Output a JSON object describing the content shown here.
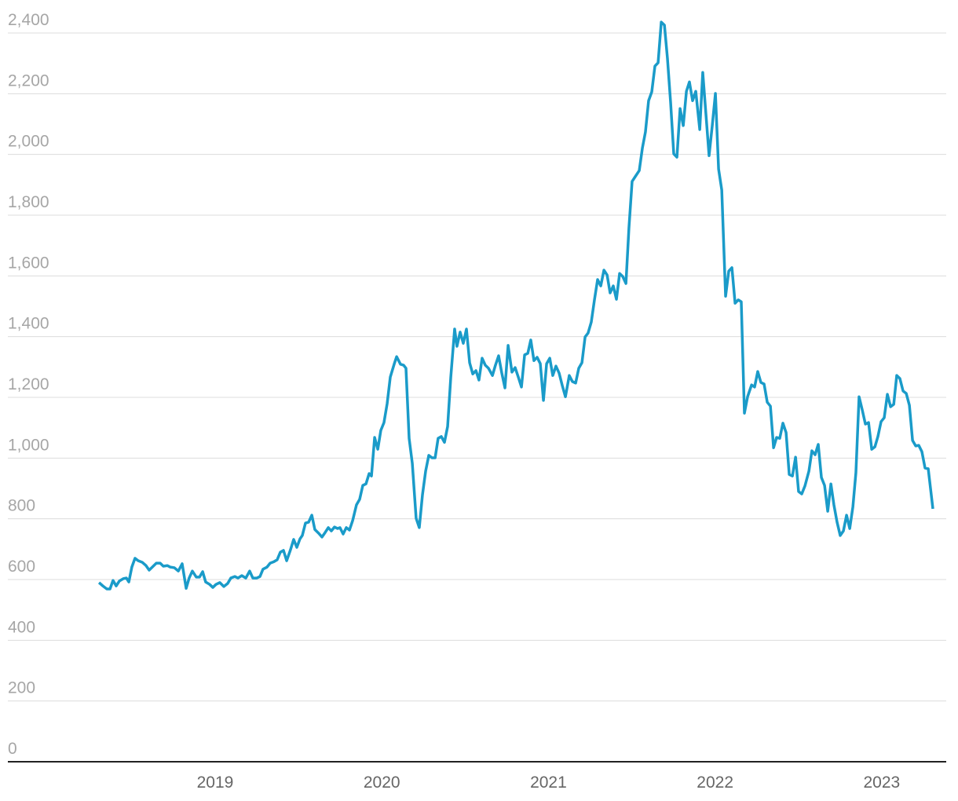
{
  "chart_data": {
    "type": "line",
    "color": "#1a9bc9",
    "grid": true,
    "xlim": [
      2017.756,
      2023.387
    ],
    "xticks": [
      2019,
      2020,
      2021,
      2022,
      2023
    ],
    "ylim": [
      0,
      2400
    ],
    "yticks": [
      0,
      200,
      400,
      600,
      800,
      {
        "value": 1000,
        "label": "1,000"
      },
      {
        "value": 1200,
        "label": "1,200"
      },
      {
        "value": 1400,
        "label": "1,400"
      },
      {
        "value": 1600,
        "label": "1,600"
      },
      {
        "value": 1800,
        "label": "1,800"
      },
      {
        "value": 2000,
        "label": "2,000"
      },
      {
        "value": 2200,
        "label": "2,200"
      },
      {
        "value": 2400,
        "label": "2,400"
      }
    ],
    "x": [
      2018.303,
      2018.326,
      2018.35,
      2018.369,
      2018.387,
      2018.406,
      2018.425,
      2018.449,
      2018.467,
      2018.482,
      2018.5,
      2018.519,
      2018.538,
      2018.562,
      2018.585,
      2018.604,
      2018.623,
      2018.647,
      2018.67,
      2018.689,
      2018.713,
      2018.731,
      2018.755,
      2018.779,
      2018.802,
      2018.826,
      2018.844,
      2018.863,
      2018.887,
      2018.906,
      2018.925,
      2018.943,
      2018.967,
      2018.986,
      2019.005,
      2019.028,
      2019.052,
      2019.075,
      2019.094,
      2019.118,
      2019.137,
      2019.16,
      2019.184,
      2019.207,
      2019.226,
      2019.25,
      2019.269,
      2019.287,
      2019.311,
      2019.33,
      2019.353,
      2019.372,
      2019.391,
      2019.41,
      2019.429,
      2019.452,
      2019.471,
      2019.49,
      2019.509,
      2019.523,
      2019.542,
      2019.561,
      2019.58,
      2019.598,
      2019.622,
      2019.641,
      2019.66,
      2019.679,
      2019.697,
      2019.716,
      2019.735,
      2019.749,
      2019.768,
      2019.787,
      2019.806,
      2019.825,
      2019.848,
      2019.867,
      2019.886,
      2019.905,
      2019.924,
      2019.938,
      2019.957,
      2019.976,
      2019.994,
      2020.013,
      2020.032,
      2020.051,
      2020.074,
      2020.089,
      2020.112,
      2020.131,
      2020.145,
      2020.164,
      2020.183,
      2020.206,
      2020.225,
      2020.244,
      2020.263,
      2020.282,
      2020.301,
      2020.32,
      2020.338,
      2020.357,
      2020.376,
      2020.395,
      2020.414,
      2020.437,
      2020.451,
      2020.47,
      2020.489,
      2020.508,
      2020.527,
      2020.546,
      2020.565,
      2020.583,
      2020.602,
      2020.621,
      2020.64,
      2020.664,
      2020.682,
      2020.701,
      2020.72,
      2020.739,
      2020.758,
      2020.781,
      2020.8,
      2020.819,
      2020.838,
      2020.857,
      2020.876,
      2020.894,
      2020.913,
      2020.932,
      2020.951,
      2020.97,
      2020.989,
      2021.008,
      2021.026,
      2021.045,
      2021.064,
      2021.083,
      2021.102,
      2021.125,
      2021.144,
      2021.163,
      2021.182,
      2021.201,
      2021.22,
      2021.238,
      2021.257,
      2021.276,
      2021.295,
      2021.314,
      2021.333,
      2021.352,
      2021.37,
      2021.389,
      2021.408,
      2021.427,
      2021.446,
      2021.465,
      2021.483,
      2021.502,
      2021.521,
      2021.545,
      2021.564,
      2021.582,
      2021.601,
      2021.62,
      2021.639,
      2021.658,
      2021.677,
      2021.696,
      2021.714,
      2021.733,
      2021.752,
      2021.771,
      2021.79,
      2021.809,
      2021.828,
      2021.846,
      2021.865,
      2021.884,
      2021.908,
      2021.926,
      2021.945,
      2021.964,
      2021.983,
      2022.002,
      2022.021,
      2022.04,
      2022.063,
      2022.082,
      2022.101,
      2022.12,
      2022.139,
      2022.157,
      2022.176,
      2022.195,
      2022.219,
      2022.237,
      2022.256,
      2022.275,
      2022.294,
      2022.313,
      2022.332,
      2022.351,
      2022.369,
      2022.388,
      2022.407,
      2022.426,
      2022.445,
      2022.464,
      2022.483,
      2022.501,
      2022.52,
      2022.539,
      2022.563,
      2022.581,
      2022.6,
      2022.619,
      2022.638,
      2022.657,
      2022.676,
      2022.695,
      2022.713,
      2022.732,
      2022.751,
      2022.77,
      2022.789,
      2022.808,
      2022.827,
      2022.845,
      2022.864,
      2022.883,
      2022.902,
      2022.921,
      2022.94,
      2022.959,
      2022.977,
      2022.996,
      2023.015,
      2023.034,
      2023.053,
      2023.072,
      2023.09,
      2023.109,
      2023.128,
      2023.147,
      2023.166,
      2023.185,
      2023.204,
      2023.222,
      2023.241,
      2023.26,
      2023.279,
      2023.307
    ],
    "values": [
      590,
      579,
      569,
      569,
      597,
      579,
      595,
      603,
      605,
      592,
      641,
      670,
      662,
      657,
      646,
      631,
      641,
      654,
      654,
      644,
      646,
      641,
      639,
      628,
      652,
      571,
      605,
      628,
      608,
      608,
      626,
      592,
      584,
      574,
      584,
      590,
      577,
      587,
      605,
      610,
      605,
      613,
      605,
      628,
      605,
      605,
      610,
      634,
      641,
      654,
      659,
      665,
      690,
      696,
      662,
      698,
      732,
      706,
      734,
      745,
      786,
      789,
      812,
      765,
      752,
      740,
      755,
      771,
      760,
      773,
      768,
      771,
      750,
      771,
      763,
      794,
      846,
      864,
      910,
      915,
      949,
      941,
      1068,
      1029,
      1091,
      1117,
      1179,
      1267,
      1309,
      1334,
      1309,
      1306,
      1296,
      1065,
      983,
      802,
      771,
      879,
      957,
      1009,
      1001,
      1001,
      1065,
      1071,
      1052,
      1104,
      1267,
      1425,
      1368,
      1415,
      1378,
      1425,
      1314,
      1277,
      1288,
      1257,
      1329,
      1306,
      1296,
      1272,
      1306,
      1337,
      1280,
      1231,
      1371,
      1283,
      1298,
      1267,
      1234,
      1340,
      1345,
      1389,
      1321,
      1332,
      1311,
      1190,
      1311,
      1329,
      1272,
      1303,
      1280,
      1239,
      1202,
      1272,
      1252,
      1247,
      1296,
      1314,
      1399,
      1412,
      1448,
      1521,
      1588,
      1567,
      1619,
      1603,
      1544,
      1567,
      1523,
      1608,
      1598,
      1575,
      1758,
      1911,
      1927,
      1947,
      2022,
      2074,
      2177,
      2206,
      2291,
      2302,
      2436,
      2426,
      2317,
      2172,
      2002,
      1991,
      2151,
      2095,
      2208,
      2239,
      2177,
      2208,
      2082,
      2270,
      2133,
      1996,
      2095,
      2201,
      1952,
      1883,
      1533,
      1616,
      1627,
      1510,
      1521,
      1515,
      1148,
      1202,
      1241,
      1234,
      1285,
      1249,
      1244,
      1184,
      1171,
      1034,
      1068,
      1065,
      1115,
      1084,
      946,
      941,
      1003,
      890,
      882,
      908,
      957,
      1024,
      1011,
      1045,
      936,
      910,
      825,
      915,
      846,
      789,
      745,
      760,
      812,
      768,
      840,
      952,
      1202,
      1159,
      1112,
      1117,
      1029,
      1037,
      1071,
      1120,
      1133,
      1210,
      1169,
      1177,
      1272,
      1262,
      1221,
      1213,
      1174,
      1058,
      1040,
      1042,
      1021,
      967,
      965,
      833
    ]
  }
}
